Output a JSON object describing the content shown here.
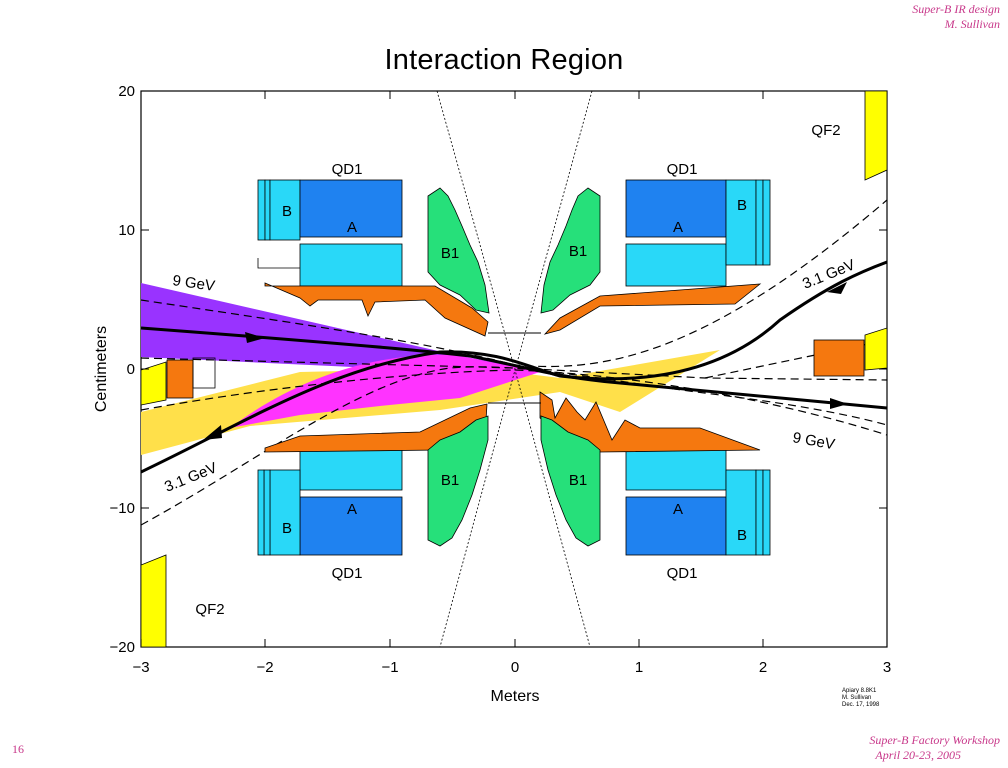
{
  "header": {
    "line1": "Super-B IR design",
    "line2": "M. Sullivan"
  },
  "footer": {
    "line1": "Super-B Factory Workshop",
    "line2": "April 20-23, 2005"
  },
  "slide_number": "16",
  "title": "Interaction Region",
  "axes": {
    "xlabel": "Meters",
    "ylabel": "Centimeters",
    "xticks": [
      "−3",
      "−2",
      "−1",
      "0",
      "1",
      "2",
      "3"
    ],
    "yticks": [
      "20",
      "10",
      "0",
      "−10",
      "−20"
    ]
  },
  "labels": {
    "qd1": "QD1",
    "qf2": "QF2",
    "a": "A",
    "b": "B",
    "b1": "B1",
    "beam_high": "9 GeV",
    "beam_low": "3.1 GeV"
  },
  "credit": {
    "line1": "Apiary 8.8K1",
    "line2": "M. Sullivan",
    "line3": "Dec. 17, 1998"
  },
  "colors": {
    "purple": "#9933ff",
    "magenta": "#ff33ff",
    "yellow": "#ffe04a",
    "orange": "#f5780f",
    "green": "#26e07a",
    "dark_blue": "#1f82f0",
    "light_blue": "#29d8f8",
    "qf2_yellow": "#ffff00",
    "pink_text": "#c8388a"
  }
}
